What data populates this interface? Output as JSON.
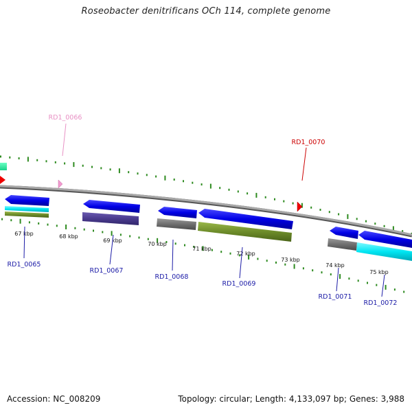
{
  "title": "Roseobacter denitrificans OCh 114, complete genome",
  "footer": {
    "accession": "Accession: NC_008209",
    "summary": "Topology: circular; Length: 4,133,097 bp; Genes: 3,988"
  },
  "colors": {
    "tick": "#2d8a1f",
    "backbone": "#8c8c8c",
    "label_blue": "#1a1aa6",
    "label_pink": "#e890c4",
    "label_red": "#cc0000"
  },
  "scale_labels": [
    "67 kbp",
    "68 kbp",
    "69 kbp",
    "70 kbp",
    "71 kbp",
    "72 kbp",
    "73 kbp",
    "74 kbp",
    "75 kbp"
  ],
  "gene_labels": [
    {
      "name": "RD1_0065",
      "color": "blue"
    },
    {
      "name": "RD1_0066",
      "color": "pink"
    },
    {
      "name": "RD1_0067",
      "color": "blue"
    },
    {
      "name": "RD1_0068",
      "color": "blue"
    },
    {
      "name": "RD1_0069",
      "color": "blue"
    },
    {
      "name": "RD1_0070",
      "color": "red"
    },
    {
      "name": "RD1_0071",
      "color": "blue"
    },
    {
      "name": "RD1_0072",
      "color": "blue"
    }
  ]
}
